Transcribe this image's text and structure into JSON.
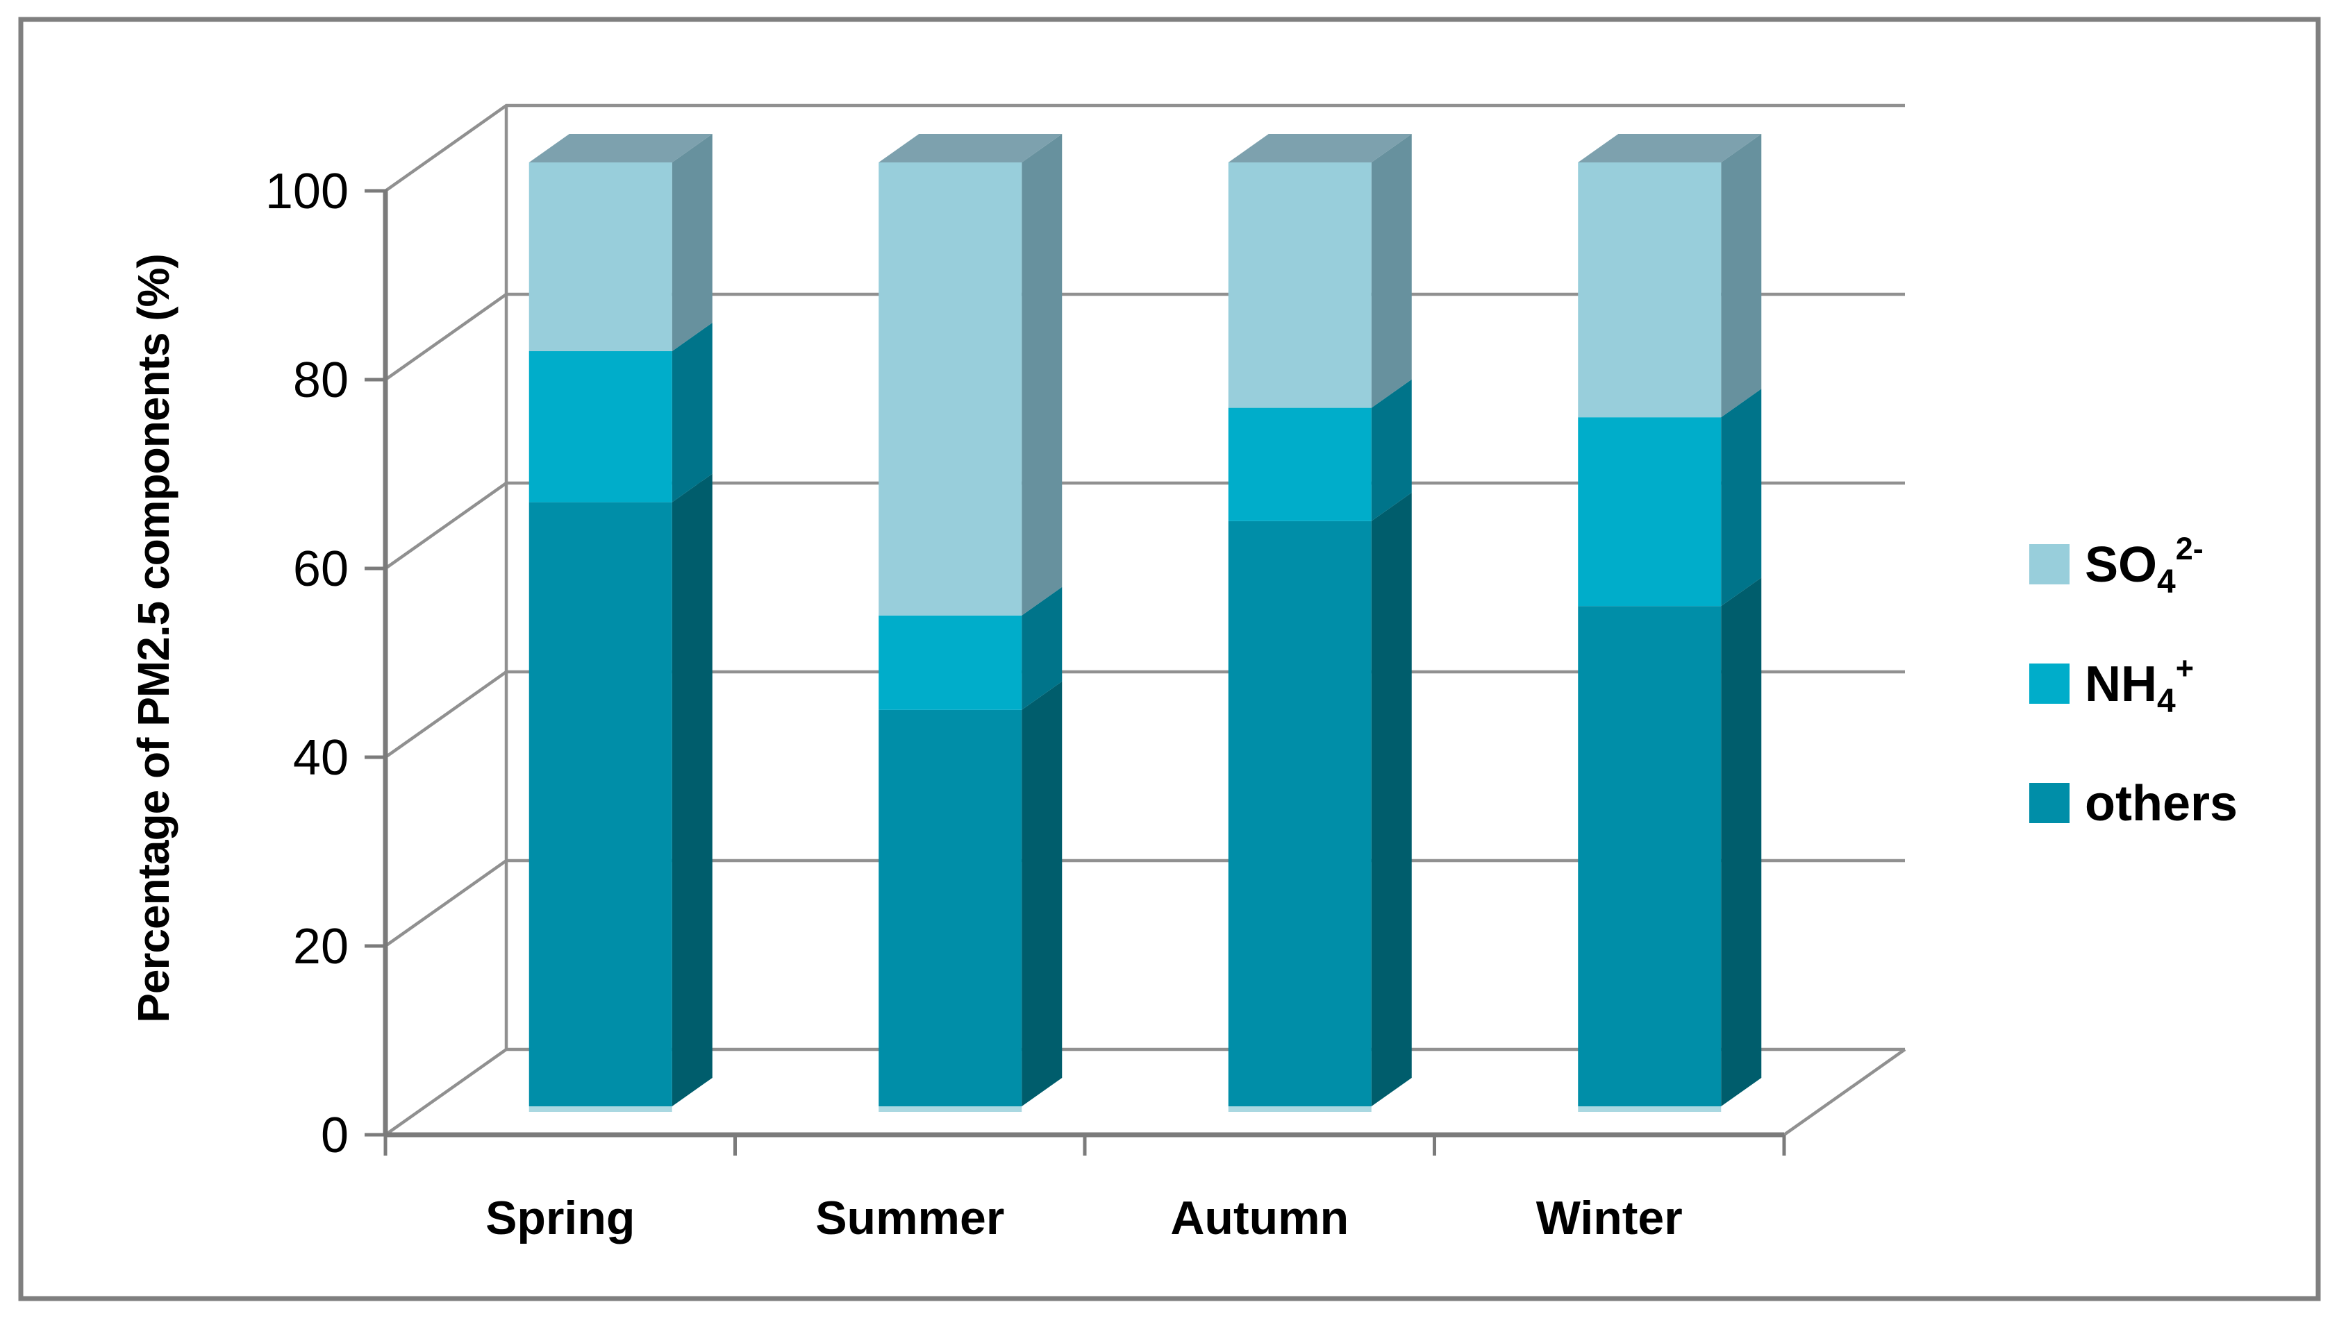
{
  "chart_data": {
    "type": "bar",
    "stacked": true,
    "projection": "3d",
    "title": "",
    "xlabel": "",
    "ylabel": "Percentage of PM2.5 components (%)",
    "categories": [
      "Spring",
      "Summer",
      "Autumn",
      "Winter"
    ],
    "series": [
      {
        "name": "others",
        "values": [
          64,
          42,
          62,
          53
        ],
        "color": "#008ea8",
        "side_color": "#005d6c"
      },
      {
        "name": "NH4+",
        "values": [
          16,
          10,
          12,
          20
        ],
        "color": "#00adca",
        "side_color": "#00748a"
      },
      {
        "name": "SO42-",
        "values": [
          20,
          48,
          26,
          27
        ],
        "color": "#98cedb",
        "side_color": "#67919e"
      }
    ],
    "stack_totals": [
      100,
      100,
      100,
      100
    ],
    "top_face_color": "#7da1ae",
    "base_highlight_color": "#aad8e1",
    "ylim": [
      0,
      100
    ],
    "yticks": [
      0,
      20,
      40,
      60,
      80,
      100
    ],
    "grid": true,
    "legend_position": "right",
    "legend": [
      {
        "main": "SO",
        "sub": "4",
        "sup": "2-",
        "series": "SO42-",
        "color": "#98cedb"
      },
      {
        "main": "NH",
        "sub": "4",
        "sup": "+",
        "series": "NH4+",
        "color": "#00adca"
      },
      {
        "main": "others",
        "sub": "",
        "sup": "",
        "series": "others",
        "color": "#008ea8"
      }
    ],
    "colors": {
      "gridline": "#909090",
      "axis": "#7b7b7b",
      "border": "#7f7f7f",
      "text": "#000000",
      "background": "#ffffff"
    }
  }
}
